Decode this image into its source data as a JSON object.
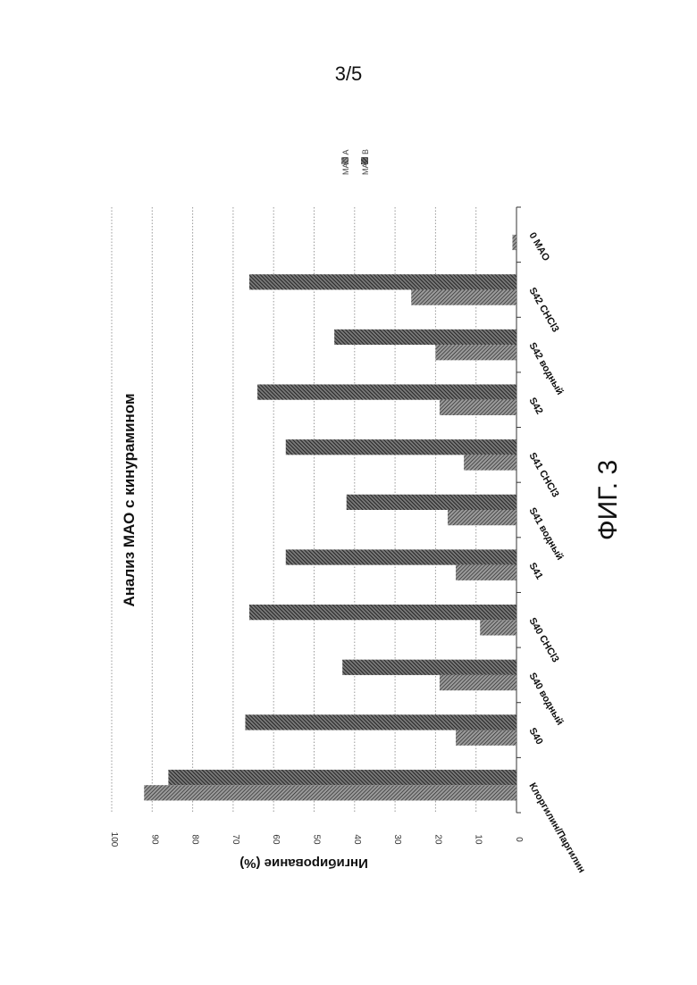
{
  "page": {
    "number": "3/5",
    "figure_label": "ФИГ. 3"
  },
  "chart_data": {
    "type": "bar",
    "orientation": "rotated 90° clockwise (drawn as sideways page)",
    "title": "Анализ МАО с кинурамином",
    "ylabel": "Ингибирование (%)",
    "xlabel": "",
    "ylim": [
      0,
      100
    ],
    "ticks": [
      0,
      10,
      20,
      30,
      40,
      50,
      60,
      70,
      80,
      90,
      100
    ],
    "grid": true,
    "legend_position": "top-right",
    "categories": [
      "Клоргилин/Паргилин",
      "S40",
      "S40 водный",
      "S40 CHCl3",
      "S41",
      "S41 водный",
      "S41 CHCl3",
      "S42",
      "S42 водный",
      "S42 CHCl3",
      "0 MAO"
    ],
    "series": [
      {
        "name": "MAO A",
        "values": [
          92,
          15,
          19,
          9,
          15,
          17,
          13,
          19,
          20,
          26,
          1
        ],
        "pattern": "light"
      },
      {
        "name": "MAO B",
        "values": [
          86,
          67,
          43,
          66,
          57,
          42,
          57,
          64,
          45,
          66,
          0
        ],
        "pattern": "dark"
      }
    ],
    "colors": {
      "bar_fill": "#555555",
      "grid": "#999999",
      "axis": "#333333"
    }
  }
}
